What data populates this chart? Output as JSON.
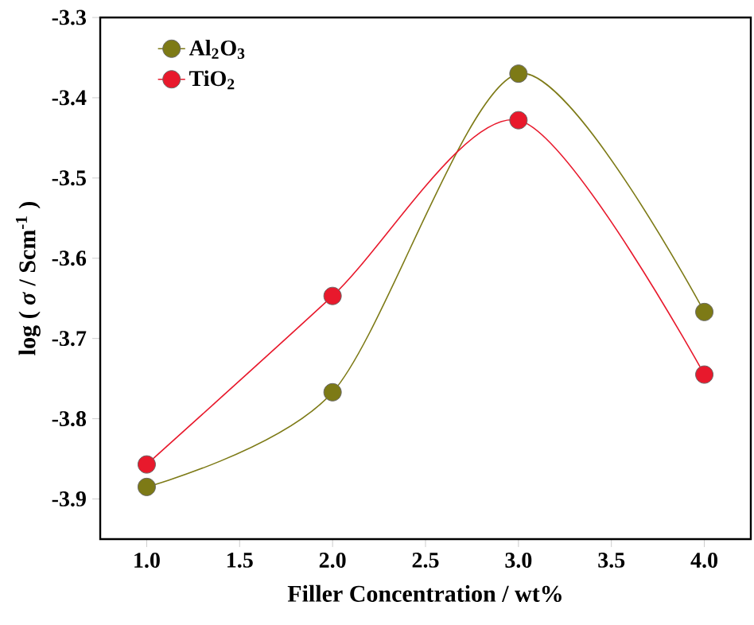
{
  "chart_data": {
    "type": "line",
    "xlabel": "Filler Concentration / wt%",
    "ylabel": "log ( *σ* / Scm$^{-1}$ )",
    "x": [
      1,
      2,
      3,
      4
    ],
    "series": [
      {
        "name": "Al$_{2}$O$_{3}$",
        "color": "#7d7a16",
        "values": [
          -3.885,
          -3.767,
          -3.37,
          -3.667
        ]
      },
      {
        "name": "TiO$_{2}$",
        "color": "#e8192c",
        "values": [
          -3.857,
          -3.647,
          -3.428,
          -3.745
        ]
      }
    ],
    "xlim": [
      0.75,
      4.25
    ],
    "ylim": [
      -3.95,
      -3.3
    ],
    "xticks": [
      {
        "value": 1,
        "label": "1.0"
      },
      {
        "value": 1.5,
        "label": "1.5"
      },
      {
        "value": 2,
        "label": "2.0"
      },
      {
        "value": 2.5,
        "label": "2.5"
      },
      {
        "value": 3,
        "label": "3.0"
      },
      {
        "value": 3.5,
        "label": "3.5"
      },
      {
        "value": 4,
        "label": "4.0"
      }
    ],
    "yticks": [
      -3.9,
      -3.8,
      -3.7,
      -3.6,
      -3.5,
      -3.4,
      -3.3
    ],
    "legend": "top left",
    "marker": "circle",
    "grid": false
  }
}
